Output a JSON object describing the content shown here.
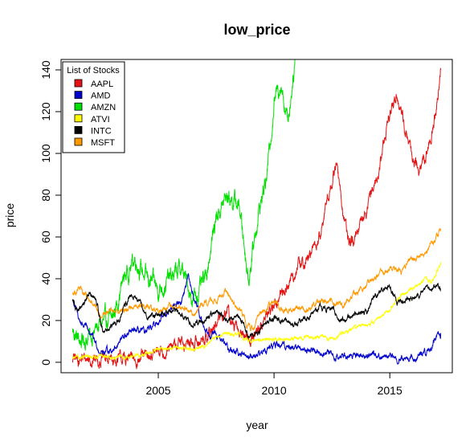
{
  "chart_data": {
    "type": "line",
    "title": "low_price",
    "xlabel": "year",
    "ylabel": "price",
    "xlim": [
      2000.8,
      2017.7
    ],
    "ylim": [
      -5,
      145
    ],
    "x_ticks": [
      2005,
      2010,
      2015
    ],
    "y_ticks": [
      0,
      20,
      40,
      60,
      80,
      100,
      120,
      140
    ],
    "grid": false,
    "legend": {
      "title": "List of Stocks",
      "position": "top-left"
    },
    "series": [
      {
        "name": "AAPL",
        "color": "#e41414",
        "points": [
          [
            2001.3,
            1.3
          ],
          [
            2002.0,
            1.8
          ],
          [
            2002.5,
            1.5
          ],
          [
            2003.0,
            1.0
          ],
          [
            2003.5,
            1.4
          ],
          [
            2004.0,
            1.6
          ],
          [
            2004.5,
            2.5
          ],
          [
            2005.0,
            5
          ],
          [
            2005.5,
            5.5
          ],
          [
            2006.0,
            10
          ],
          [
            2006.5,
            8
          ],
          [
            2007.0,
            12
          ],
          [
            2007.5,
            17
          ],
          [
            2007.9,
            26
          ],
          [
            2008.3,
            16
          ],
          [
            2008.7,
            13
          ],
          [
            2009.0,
            11
          ],
          [
            2009.5,
            19
          ],
          [
            2010.0,
            28
          ],
          [
            2010.5,
            35
          ],
          [
            2011.0,
            45
          ],
          [
            2011.5,
            50
          ],
          [
            2012.0,
            60
          ],
          [
            2012.3,
            78
          ],
          [
            2012.7,
            95
          ],
          [
            2013.0,
            70
          ],
          [
            2013.3,
            55
          ],
          [
            2013.6,
            60
          ],
          [
            2014.0,
            75
          ],
          [
            2014.5,
            90
          ],
          [
            2014.9,
            115
          ],
          [
            2015.3,
            130
          ],
          [
            2015.7,
            110
          ],
          [
            2016.0,
            95
          ],
          [
            2016.4,
            92
          ],
          [
            2016.8,
            110
          ],
          [
            2017.0,
            120
          ],
          [
            2017.2,
            140
          ]
        ],
        "jitter": 3.5
      },
      {
        "name": "AMD",
        "color": "#0000cc",
        "points": [
          [
            2001.3,
            30
          ],
          [
            2001.6,
            20
          ],
          [
            2002.0,
            15
          ],
          [
            2002.5,
            5
          ],
          [
            2003.0,
            6
          ],
          [
            2003.5,
            12
          ],
          [
            2004.0,
            15
          ],
          [
            2004.5,
            14
          ],
          [
            2005.0,
            20
          ],
          [
            2005.5,
            25
          ],
          [
            2006.0,
            30
          ],
          [
            2006.3,
            40
          ],
          [
            2006.7,
            25
          ],
          [
            2007.0,
            16
          ],
          [
            2007.5,
            13
          ],
          [
            2008.0,
            7
          ],
          [
            2008.5,
            4
          ],
          [
            2009.0,
            3
          ],
          [
            2009.5,
            5
          ],
          [
            2010.0,
            8
          ],
          [
            2010.5,
            8
          ],
          [
            2011.0,
            7
          ],
          [
            2011.5,
            6
          ],
          [
            2012.0,
            5
          ],
          [
            2012.5,
            3
          ],
          [
            2013.0,
            3
          ],
          [
            2013.5,
            3.5
          ],
          [
            2014.0,
            4
          ],
          [
            2014.5,
            3.5
          ],
          [
            2015.0,
            2.5
          ],
          [
            2015.5,
            2
          ],
          [
            2016.0,
            2
          ],
          [
            2016.5,
            4
          ],
          [
            2016.8,
            7
          ],
          [
            2017.0,
            12
          ],
          [
            2017.2,
            14
          ]
        ],
        "jitter": 1.8
      },
      {
        "name": "AMZN",
        "color": "#00e000",
        "points": [
          [
            2001.3,
            15
          ],
          [
            2001.6,
            10
          ],
          [
            2002.0,
            12
          ],
          [
            2002.5,
            18
          ],
          [
            2003.0,
            20
          ],
          [
            2003.5,
            40
          ],
          [
            2004.0,
            50
          ],
          [
            2004.5,
            40
          ],
          [
            2005.0,
            35
          ],
          [
            2005.5,
            40
          ],
          [
            2006.0,
            45
          ],
          [
            2006.5,
            30
          ],
          [
            2007.0,
            38
          ],
          [
            2007.5,
            70
          ],
          [
            2008.0,
            80
          ],
          [
            2008.5,
            75
          ],
          [
            2008.9,
            40
          ],
          [
            2009.3,
            70
          ],
          [
            2009.7,
            90
          ],
          [
            2010.0,
            125
          ],
          [
            2010.3,
            135
          ],
          [
            2010.6,
            115
          ],
          [
            2010.9,
            145
          ]
        ],
        "jitter": 5
      },
      {
        "name": "ATVI",
        "color": "#ffff00",
        "points": [
          [
            2001.3,
            2
          ],
          [
            2002.0,
            2.5
          ],
          [
            2002.5,
            3
          ],
          [
            2003.0,
            2
          ],
          [
            2003.5,
            2.5
          ],
          [
            2004.0,
            3
          ],
          [
            2004.5,
            4
          ],
          [
            2005.0,
            6
          ],
          [
            2005.5,
            7
          ],
          [
            2006.0,
            7
          ],
          [
            2006.5,
            6
          ],
          [
            2007.0,
            8
          ],
          [
            2007.5,
            12
          ],
          [
            2008.0,
            14
          ],
          [
            2008.5,
            13
          ],
          [
            2008.9,
            10
          ],
          [
            2009.5,
            11
          ],
          [
            2010.0,
            11
          ],
          [
            2010.5,
            11
          ],
          [
            2011.0,
            12
          ],
          [
            2011.5,
            12
          ],
          [
            2012.0,
            12
          ],
          [
            2012.5,
            11
          ],
          [
            2013.0,
            14
          ],
          [
            2013.5,
            17
          ],
          [
            2014.0,
            18
          ],
          [
            2014.5,
            21
          ],
          [
            2015.0,
            25
          ],
          [
            2015.5,
            32
          ],
          [
            2016.0,
            35
          ],
          [
            2016.5,
            40
          ],
          [
            2016.8,
            38
          ],
          [
            2017.0,
            42
          ],
          [
            2017.2,
            48
          ]
        ],
        "jitter": 0.9
      },
      {
        "name": "INTC",
        "color": "#000000",
        "points": [
          [
            2001.3,
            30
          ],
          [
            2001.6,
            24
          ],
          [
            2002.0,
            33
          ],
          [
            2002.3,
            30
          ],
          [
            2002.6,
            15
          ],
          [
            2003.0,
            17
          ],
          [
            2003.3,
            20
          ],
          [
            2003.7,
            30
          ],
          [
            2004.0,
            32
          ],
          [
            2004.5,
            22
          ],
          [
            2005.0,
            23
          ],
          [
            2005.5,
            25
          ],
          [
            2006.0,
            23
          ],
          [
            2006.5,
            18
          ],
          [
            2007.0,
            21
          ],
          [
            2007.5,
            24
          ],
          [
            2008.0,
            20
          ],
          [
            2008.5,
            22
          ],
          [
            2008.9,
            12
          ],
          [
            2009.3,
            15
          ],
          [
            2009.7,
            20
          ],
          [
            2010.0,
            21
          ],
          [
            2010.5,
            19
          ],
          [
            2011.0,
            20
          ],
          [
            2011.5,
            22
          ],
          [
            2012.0,
            26
          ],
          [
            2012.5,
            26
          ],
          [
            2012.9,
            20
          ],
          [
            2013.5,
            23
          ],
          [
            2014.0,
            25
          ],
          [
            2014.5,
            33
          ],
          [
            2015.0,
            36
          ],
          [
            2015.3,
            28
          ],
          [
            2015.7,
            30
          ],
          [
            2016.0,
            30
          ],
          [
            2016.5,
            35
          ],
          [
            2017.0,
            36
          ],
          [
            2017.2,
            35
          ]
        ],
        "jitter": 1.6
      },
      {
        "name": "MSFT",
        "color": "#ff9900",
        "points": [
          [
            2001.3,
            33
          ],
          [
            2001.6,
            35
          ],
          [
            2002.0,
            30
          ],
          [
            2002.5,
            22
          ],
          [
            2003.0,
            25
          ],
          [
            2003.5,
            25
          ],
          [
            2004.0,
            27
          ],
          [
            2004.5,
            27
          ],
          [
            2005.0,
            25
          ],
          [
            2005.5,
            26
          ],
          [
            2006.0,
            26
          ],
          [
            2006.5,
            23
          ],
          [
            2007.0,
            29
          ],
          [
            2007.5,
            30
          ],
          [
            2007.9,
            34
          ],
          [
            2008.3,
            27
          ],
          [
            2008.7,
            22
          ],
          [
            2009.0,
            16
          ],
          [
            2009.5,
            24
          ],
          [
            2010.0,
            29
          ],
          [
            2010.5,
            24
          ],
          [
            2011.0,
            26
          ],
          [
            2011.5,
            25
          ],
          [
            2012.0,
            30
          ],
          [
            2012.5,
            29
          ],
          [
            2013.0,
            27
          ],
          [
            2013.5,
            33
          ],
          [
            2014.0,
            37
          ],
          [
            2014.5,
            42
          ],
          [
            2015.0,
            45
          ],
          [
            2015.5,
            44
          ],
          [
            2016.0,
            50
          ],
          [
            2016.5,
            52
          ],
          [
            2017.0,
            60
          ],
          [
            2017.2,
            64
          ]
        ],
        "jitter": 1.6
      }
    ]
  }
}
